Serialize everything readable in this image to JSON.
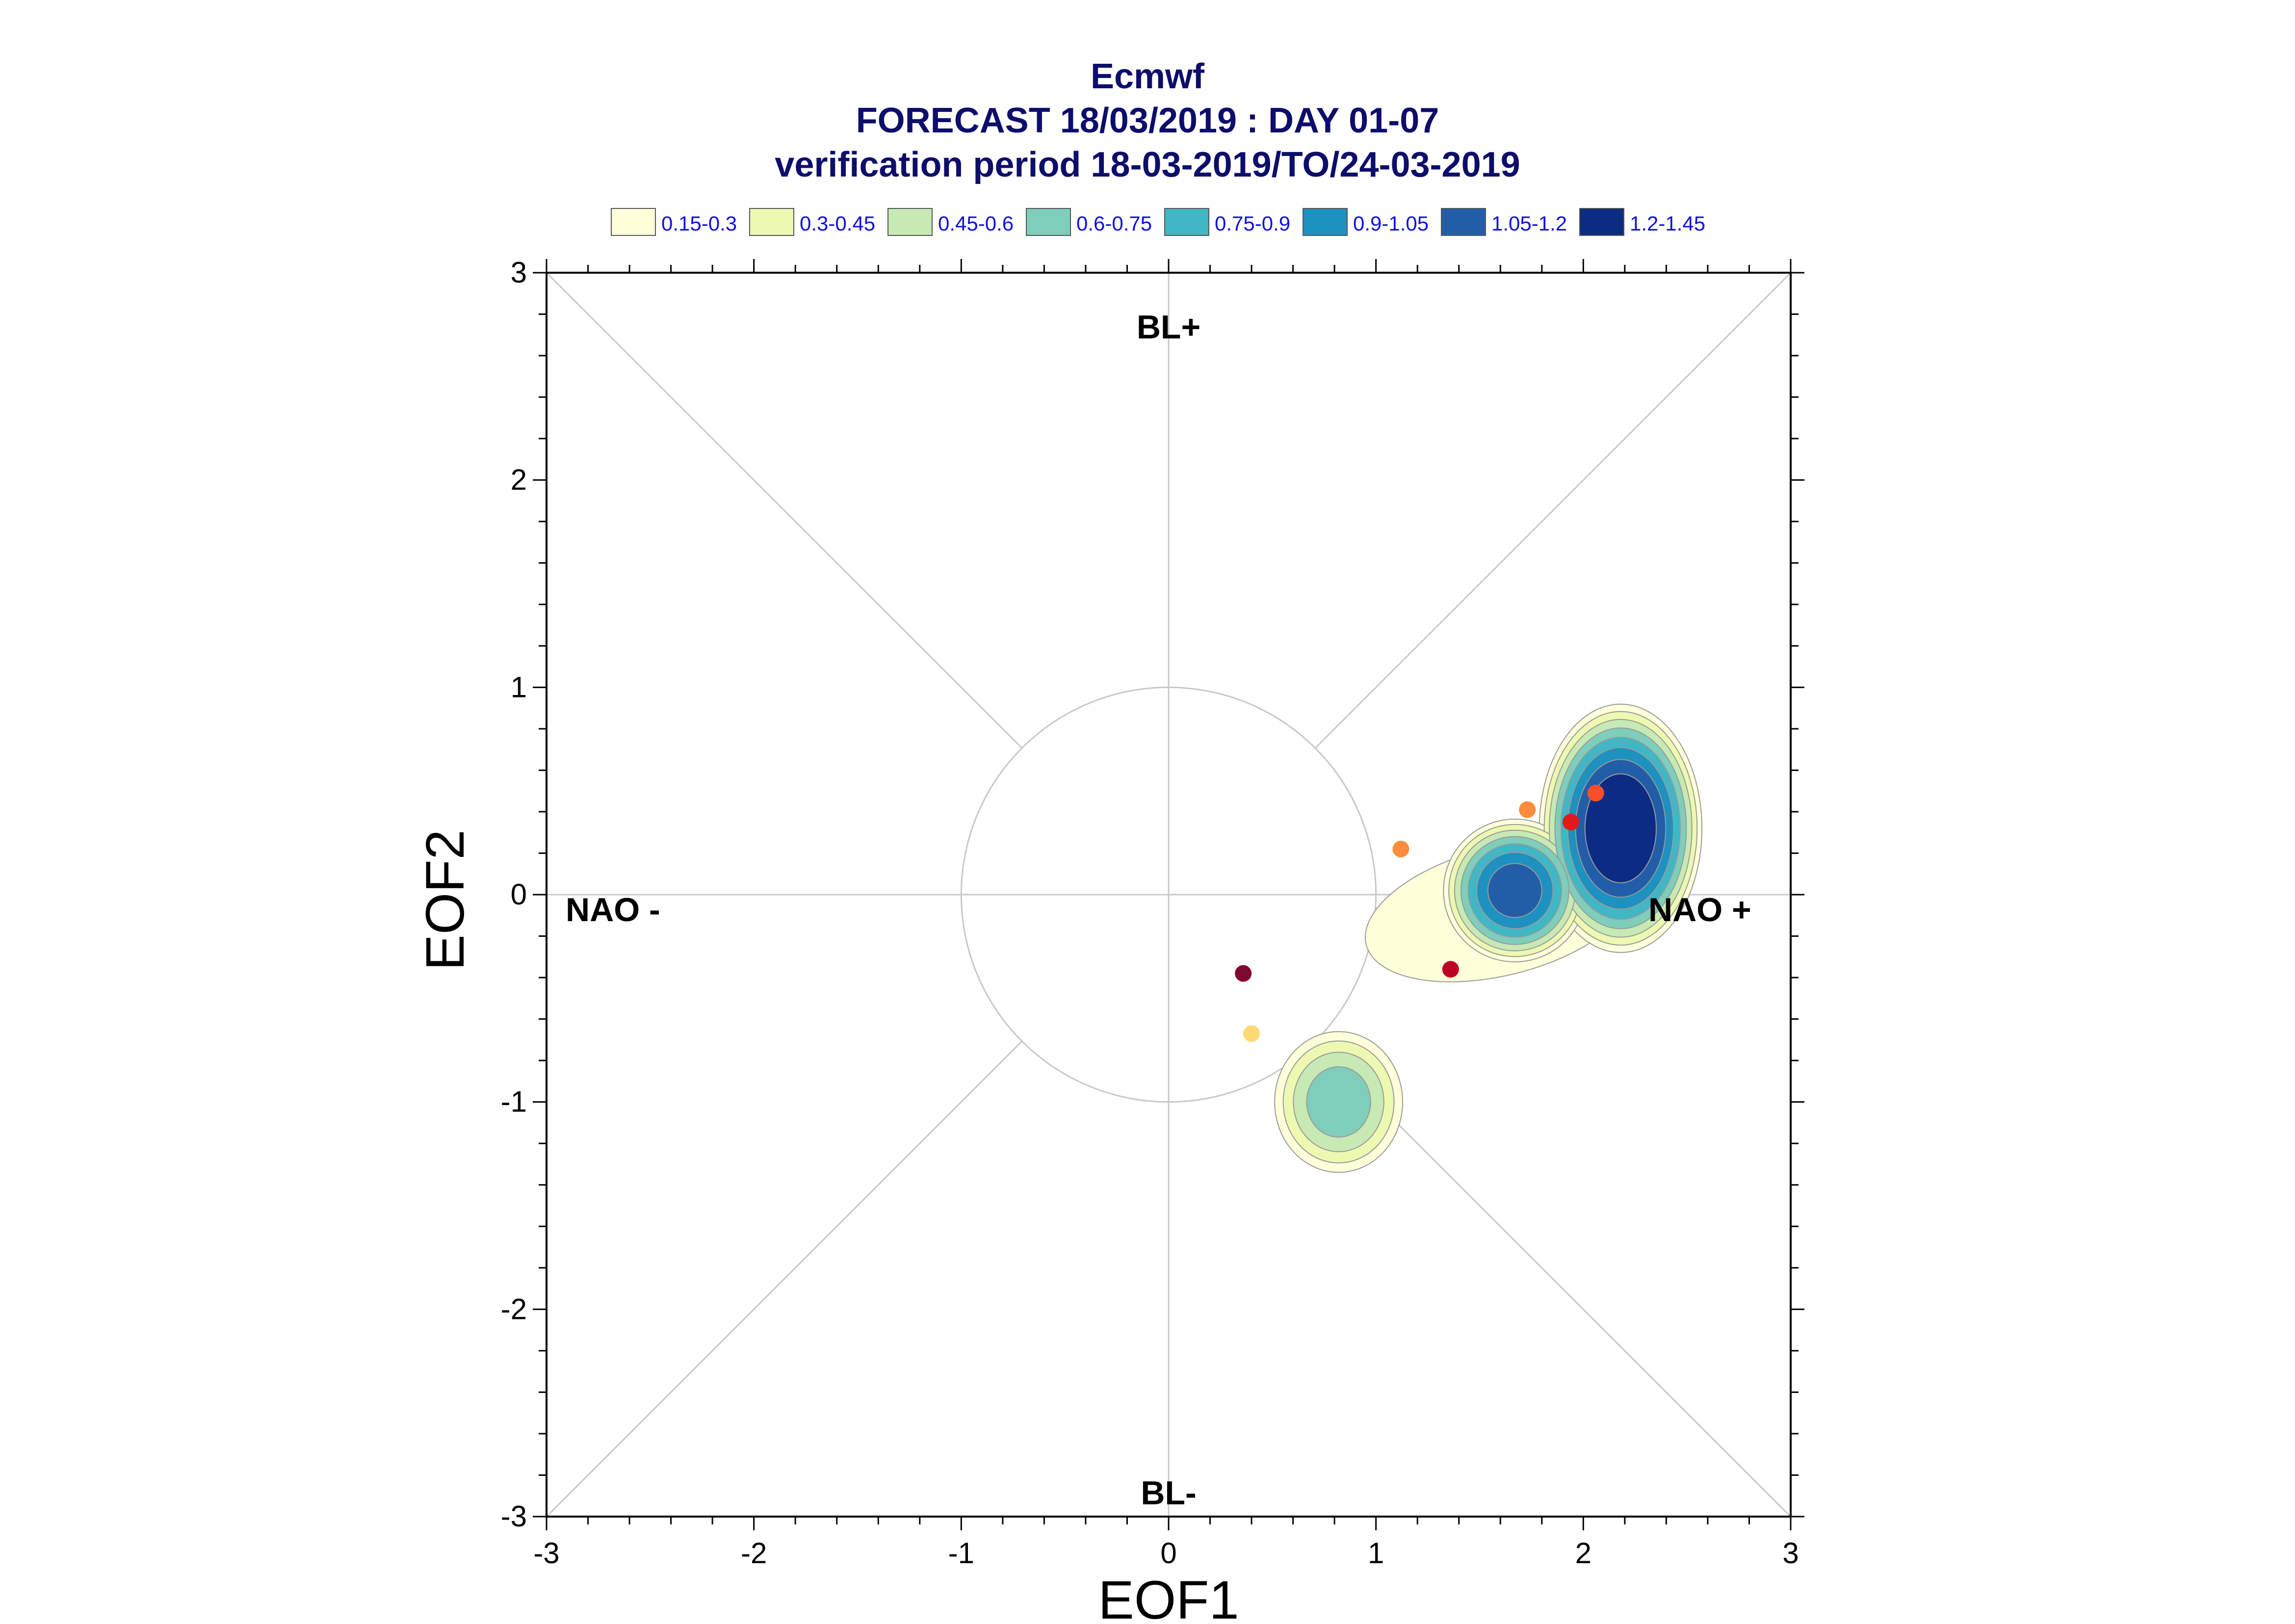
{
  "title": {
    "line1": "Ecmwf",
    "line2": "FORECAST 18/03/2019 : DAY 01-07",
    "line3": "verification period 18-03-2019/TO/24-03-2019"
  },
  "legend": [
    {
      "label": "0.15-0.3",
      "color": "#ffffd9"
    },
    {
      "label": "0.3-0.45",
      "color": "#edf8b1"
    },
    {
      "label": "0.45-0.6",
      "color": "#c7e9b4"
    },
    {
      "label": "0.6-0.75",
      "color": "#7fcdbb"
    },
    {
      "label": "0.75-0.9",
      "color": "#41b6c4"
    },
    {
      "label": "0.9-1.05",
      "color": "#1d91c0"
    },
    {
      "label": "1.05-1.2",
      "color": "#225ea8"
    },
    {
      "label": "1.2-1.45",
      "color": "#0c2c84"
    }
  ],
  "regimes": {
    "top": "BL+",
    "bottom": "BL-",
    "left": "NAO -",
    "right": "NAO +"
  },
  "chart_data": {
    "type": "scatter",
    "xlabel": "EOF1",
    "ylabel": "EOF2",
    "xlim": [
      -3,
      3
    ],
    "ylim": [
      -3,
      3
    ],
    "xticks": [
      "-3",
      "-2",
      "-1",
      "0",
      "1",
      "2",
      "3"
    ],
    "yticks": [
      "-3",
      "-2",
      "-1",
      "0",
      "1",
      "2",
      "3"
    ],
    "reference_circle_radius": 1,
    "points": [
      {
        "x": 0.36,
        "y": -0.38,
        "color": "#7f0a2f"
      },
      {
        "x": 0.4,
        "y": -0.67,
        "color": "#fed976"
      },
      {
        "x": 1.12,
        "y": 0.22,
        "color": "#fd8d3c"
      },
      {
        "x": 1.36,
        "y": -0.36,
        "color": "#bd0026"
      },
      {
        "x": 1.73,
        "y": 0.41,
        "color": "#fd8d3c"
      },
      {
        "x": 1.94,
        "y": 0.35,
        "color": "#e31a1c"
      },
      {
        "x": 2.06,
        "y": 0.49,
        "color": "#fc4e2a"
      }
    ],
    "density_blobs": [
      {
        "x": 1.67,
        "y": 0.02,
        "peak": 1.2
      },
      {
        "x": 2.18,
        "y": 0.32,
        "peak": 1.45
      },
      {
        "x": 0.82,
        "y": -1.0,
        "peak": 0.75
      }
    ]
  }
}
